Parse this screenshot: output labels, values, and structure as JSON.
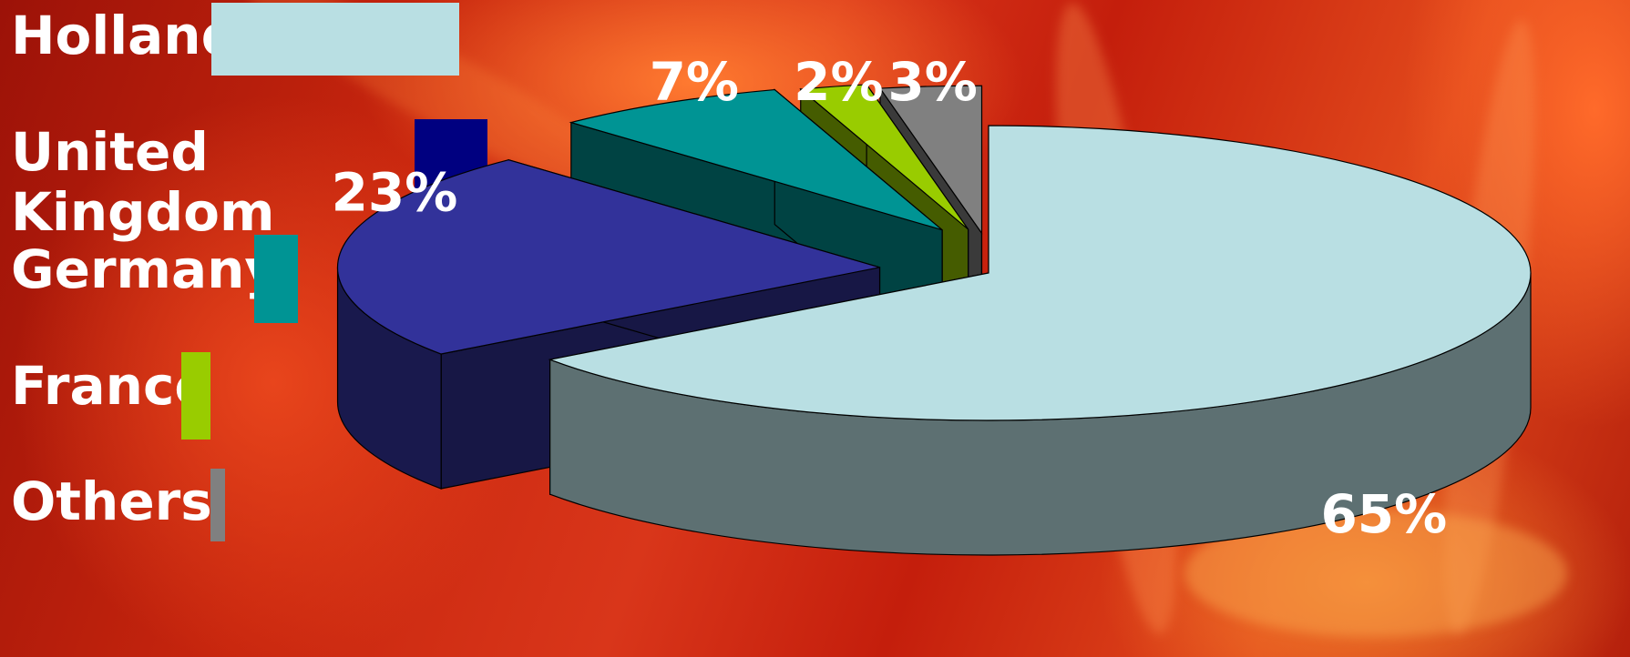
{
  "chart_data": {
    "type": "pie",
    "three_d": true,
    "categories": [
      "Holland",
      "United Kingdom",
      "Germany",
      "France",
      "Others"
    ],
    "values": [
      65,
      23,
      7,
      2,
      3
    ],
    "labels": [
      "65%",
      "23%",
      "7%",
      "2%",
      "3%"
    ],
    "colors": [
      "#b9dfe3",
      "#32329a",
      "#009494",
      "#99cc00",
      "#808080"
    ],
    "legend_colors": [
      "#b9dfe3",
      "#000080",
      "#009494",
      "#99cc00",
      "#808080"
    ],
    "legend_position": "left"
  },
  "legend": {
    "items": [
      {
        "label": "Holland"
      },
      {
        "label": "United\nKingdom"
      },
      {
        "label": "Germany"
      },
      {
        "label": "France"
      },
      {
        "label": "Others"
      }
    ]
  }
}
